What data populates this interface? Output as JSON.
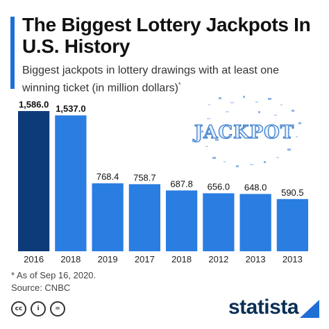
{
  "title": "The Biggest Lottery Jackpots In U.S. History",
  "subtitle": "Biggest jackpots in lottery drawings with at least one winning ticket (in million dollars)",
  "subtitle_mark": "*",
  "footnote": "* As of Sep 16, 2020.",
  "source": "Source: CNBC",
  "brand": "statista",
  "license_icons": [
    {
      "icon": "cc-icon",
      "text": "cc"
    },
    {
      "icon": "by-icon",
      "text": "i"
    },
    {
      "icon": "nd-icon",
      "text": "="
    }
  ],
  "colors": {
    "bar": "#2a7de1",
    "bar_highlight": "#0d3b7a",
    "accent": "#1f6fd6",
    "brand": "#0a2e54"
  },
  "illustration_text": "JACKPOT",
  "chart_data": {
    "type": "bar",
    "categories": [
      "2016",
      "2018",
      "2019",
      "2017",
      "2018",
      "2012",
      "2013",
      "2013"
    ],
    "values": [
      1586.0,
      1537.0,
      768.4,
      758.7,
      687.8,
      656.0,
      648.0,
      590.5
    ],
    "value_labels": [
      "1,586.0",
      "1,537.0",
      "768.4",
      "758.7",
      "687.8",
      "656.0",
      "648.0",
      "590.5"
    ],
    "highlight_index": 0,
    "title": "The Biggest Lottery Jackpots In U.S. History",
    "xlabel": "",
    "ylabel": "",
    "ylim": [
      0,
      1586.0
    ],
    "grid": false,
    "legend": "none"
  }
}
